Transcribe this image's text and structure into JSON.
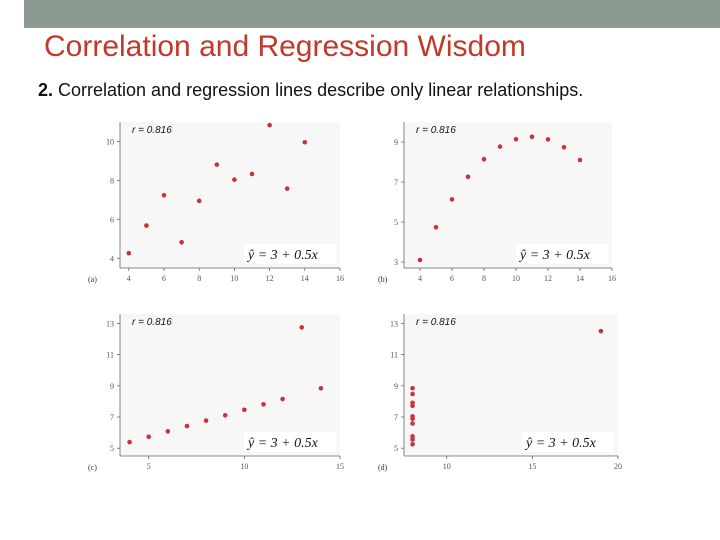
{
  "slide": {
    "title": "Correlation and Regression Wisdom",
    "point_number": "2.",
    "point_text": " Correlation and regression lines describe only linear relationships."
  },
  "colors": {
    "title": "#c0392b",
    "point": "#c8323a",
    "topbar": "#8c9a92"
  },
  "chart_data": [
    {
      "type": "scatter",
      "panel_label": "(a)",
      "r_label": "r = 0.816",
      "equation": "ŷ = 3 + 0.5x",
      "xlim": [
        3.5,
        16
      ],
      "ylim": [
        3.5,
        11
      ],
      "xticks": [
        4,
        6,
        8,
        10,
        12,
        14,
        16
      ],
      "yticks": [
        4,
        6,
        8,
        10
      ],
      "x": [
        4,
        5,
        6,
        7,
        8,
        9,
        10,
        11,
        12,
        13,
        14
      ],
      "y": [
        4.26,
        5.68,
        7.24,
        4.82,
        6.95,
        8.81,
        8.04,
        8.33,
        10.84,
        7.58,
        9.96
      ]
    },
    {
      "type": "scatter",
      "panel_label": "(b)",
      "r_label": "r = 0.816",
      "equation": "ŷ = 3 + 0.5x",
      "xlim": [
        3,
        16
      ],
      "ylim": [
        2.7,
        10
      ],
      "xticks": [
        4,
        6,
        8,
        10,
        12,
        14,
        16
      ],
      "yticks": [
        3,
        5,
        7,
        9
      ],
      "x": [
        4,
        5,
        6,
        7,
        8,
        9,
        10,
        11,
        12,
        13,
        14
      ],
      "y": [
        3.1,
        4.74,
        6.13,
        7.26,
        8.14,
        8.77,
        9.14,
        9.26,
        9.13,
        8.74,
        8.1
      ]
    },
    {
      "type": "scatter",
      "panel_label": "(c)",
      "r_label": "r = 0.816",
      "equation": "ŷ = 3 + 0.5x",
      "xlim": [
        3.5,
        15
      ],
      "ylim": [
        4.5,
        13.6
      ],
      "xticks": [
        5,
        10,
        15
      ],
      "yticks": [
        5,
        7,
        9,
        11,
        13
      ],
      "x": [
        4,
        5,
        6,
        7,
        8,
        9,
        10,
        11,
        12,
        13,
        14
      ],
      "y": [
        5.39,
        5.73,
        6.08,
        6.42,
        6.77,
        7.11,
        7.46,
        7.81,
        8.15,
        12.74,
        8.84
      ]
    },
    {
      "type": "scatter",
      "panel_label": "(d)",
      "r_label": "r = 0.816",
      "equation": "ŷ = 3 + 0.5x",
      "xlim": [
        7.5,
        20
      ],
      "ylim": [
        4.5,
        13.6
      ],
      "xticks": [
        10,
        15,
        20
      ],
      "yticks": [
        5,
        7,
        9,
        11,
        13
      ],
      "x": [
        8,
        8,
        8,
        8,
        8,
        8,
        8,
        8,
        8,
        8,
        19
      ],
      "y": [
        5.25,
        5.56,
        5.76,
        6.58,
        6.89,
        7.04,
        7.71,
        7.91,
        8.47,
        8.84,
        12.5
      ]
    }
  ]
}
